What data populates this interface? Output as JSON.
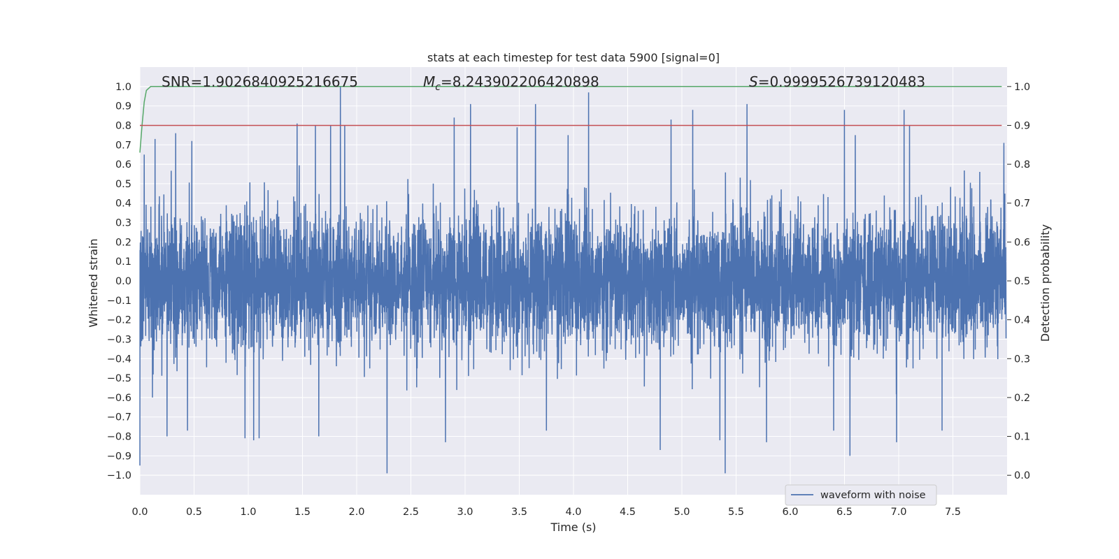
{
  "chart_data": {
    "type": "line",
    "title": "stats at each timestep for test data 5900 [signal=0]",
    "xlabel": "Time (s)",
    "ylabel": "Whitened strain",
    "y2label": "Detection probability",
    "xlim": [
      0.0,
      8.0
    ],
    "ylim": [
      -1.1,
      1.1
    ],
    "y2lim": [
      -0.05,
      1.05
    ],
    "xticks": [
      0.0,
      0.5,
      1.0,
      1.5,
      2.0,
      2.5,
      3.0,
      3.5,
      4.0,
      4.5,
      5.0,
      5.5,
      6.0,
      6.5,
      7.0,
      7.5
    ],
    "xtick_labels": [
      "0.0",
      "0.5",
      "1.0",
      "1.5",
      "2.0",
      "2.5",
      "3.0",
      "3.5",
      "4.0",
      "4.5",
      "5.0",
      "5.5",
      "6.0",
      "6.5",
      "7.0",
      "7.5"
    ],
    "yticks": [
      -1.0,
      -0.9,
      -0.8,
      -0.7,
      -0.6,
      -0.5,
      -0.4,
      -0.3,
      -0.2,
      -0.1,
      0.0,
      0.1,
      0.2,
      0.3,
      0.4,
      0.5,
      0.6,
      0.7,
      0.8,
      0.9,
      1.0
    ],
    "ytick_labels": [
      "−1.0",
      "−0.9",
      "−0.8",
      "−0.7",
      "−0.6",
      "−0.5",
      "−0.4",
      "−0.3",
      "−0.2",
      "−0.1",
      "0.0",
      "0.1",
      "0.2",
      "0.3",
      "0.4",
      "0.5",
      "0.6",
      "0.7",
      "0.8",
      "0.9",
      "1.0"
    ],
    "y2ticks": [
      0.0,
      0.1,
      0.2,
      0.3,
      0.4,
      0.5,
      0.6,
      0.7,
      0.8,
      0.9,
      1.0
    ],
    "y2tick_labels": [
      "0.0",
      "0.1",
      "0.2",
      "0.3",
      "0.4",
      "0.5",
      "0.6",
      "0.7",
      "0.8",
      "0.9",
      "1.0"
    ],
    "grid": true,
    "legend": {
      "entries": [
        "waveform with noise"
      ],
      "position": "lower-right"
    },
    "annotations": {
      "snr": "SNR=1.9026840925216675",
      "mc_symbol": "M",
      "mc_sub": "c",
      "mc_value": "=8.243902206420898",
      "s_symbol": "S",
      "s_value": "=0.9999526739120483"
    },
    "series": [
      {
        "name": "waveform with noise",
        "axis": "left",
        "color": "#4c72b0",
        "kind": "noise",
        "envelope_typical": 0.45,
        "sample_rate_hz": 2048,
        "duration_s": 7.99,
        "peaks_positive": [
          [
            0.04,
            0.65
          ],
          [
            0.14,
            0.73
          ],
          [
            0.33,
            0.76
          ],
          [
            0.48,
            0.72
          ],
          [
            1.45,
            0.81
          ],
          [
            1.62,
            0.8
          ],
          [
            1.76,
            0.8
          ],
          [
            1.85,
            1.0
          ],
          [
            1.89,
            0.8
          ],
          [
            2.9,
            0.84
          ],
          [
            3.05,
            0.91
          ],
          [
            3.48,
            0.79
          ],
          [
            3.65,
            0.91
          ],
          [
            3.95,
            0.75
          ],
          [
            4.14,
            0.97
          ],
          [
            4.9,
            0.83
          ],
          [
            5.1,
            0.88
          ],
          [
            5.6,
            0.91
          ],
          [
            6.5,
            0.88
          ],
          [
            6.6,
            0.75
          ],
          [
            7.05,
            0.88
          ],
          [
            7.1,
            0.8
          ],
          [
            7.97,
            0.71
          ]
        ],
        "peaks_negative": [
          [
            0.0,
            -0.95
          ],
          [
            0.25,
            -0.8
          ],
          [
            0.44,
            -0.77
          ],
          [
            0.97,
            -0.81
          ],
          [
            1.05,
            -0.82
          ],
          [
            1.1,
            -0.81
          ],
          [
            1.65,
            -0.8
          ],
          [
            2.28,
            -0.99
          ],
          [
            2.82,
            -0.83
          ],
          [
            3.75,
            -0.77
          ],
          [
            4.8,
            -0.87
          ],
          [
            5.4,
            -0.99
          ],
          [
            5.35,
            -0.82
          ],
          [
            5.78,
            -0.83
          ],
          [
            6.4,
            -0.77
          ],
          [
            6.55,
            -0.9
          ],
          [
            6.98,
            -0.83
          ],
          [
            7.4,
            -0.77
          ]
        ]
      },
      {
        "name": "detection probability",
        "axis": "right",
        "color": "#55a868",
        "x": [
          0.0,
          0.02,
          0.04,
          0.06,
          0.1,
          0.2,
          1.0,
          3.0,
          5.0,
          7.0,
          7.95
        ],
        "y": [
          0.83,
          0.9,
          0.96,
          0.99,
          1.0,
          1.0,
          1.0,
          1.0,
          1.0,
          1.0,
          1.0
        ]
      },
      {
        "name": "threshold",
        "axis": "right",
        "color": "#c44e52",
        "x": [
          0.0,
          7.95
        ],
        "y": [
          0.9,
          0.9
        ]
      }
    ]
  }
}
